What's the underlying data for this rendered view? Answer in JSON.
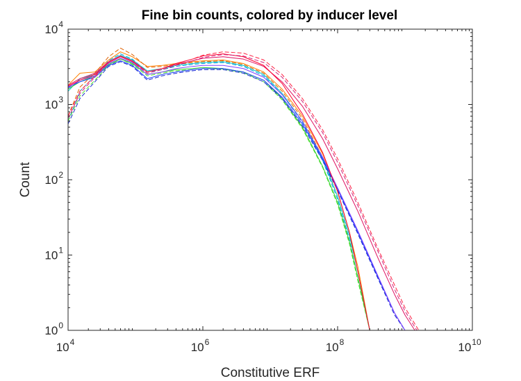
{
  "chart_data": {
    "type": "line",
    "title": "Fine bin counts, colored by inducer level",
    "xlabel": "Constitutive ERF",
    "ylabel": "Count",
    "xscale": "log",
    "yscale": "log",
    "xlim": [
      10000,
      10000000000
    ],
    "ylim": [
      1,
      10000
    ],
    "grid": false,
    "legend": "none",
    "xticks": [
      {
        "base": "10",
        "exp": "4",
        "value": 10000
      },
      {
        "base": "10",
        "exp": "6",
        "value": 1000000
      },
      {
        "base": "10",
        "exp": "8",
        "value": 100000000
      },
      {
        "base": "10",
        "exp": "10",
        "value": 10000000000
      }
    ],
    "yticks": [
      {
        "base": "10",
        "exp": "0",
        "value": 1
      },
      {
        "base": "10",
        "exp": "1",
        "value": 10
      },
      {
        "base": "10",
        "exp": "2",
        "value": 100
      },
      {
        "base": "10",
        "exp": "3",
        "value": 1000
      },
      {
        "base": "10",
        "exp": "4",
        "value": 10000
      }
    ],
    "series": [
      {
        "color": "#ff8000",
        "dash": "solid",
        "x": [
          10000,
          15000,
          25000,
          40000,
          60000,
          90000,
          150000,
          250000,
          400000,
          700000,
          1000000,
          2000000,
          4000000,
          8000000,
          15000000,
          30000000,
          60000000,
          100000000,
          150000000,
          200000000,
          300000000
        ],
        "y": [
          1800,
          2600,
          2700,
          3900,
          5000,
          4300,
          3200,
          3300,
          3500,
          3700,
          3800,
          3900,
          3500,
          2700,
          1600,
          700,
          220,
          70,
          20,
          7,
          1
        ]
      },
      {
        "color": "#e06000",
        "dash": "dashed",
        "x": [
          10000,
          15000,
          25000,
          40000,
          60000,
          90000,
          150000,
          250000,
          400000,
          700000,
          1000000,
          2000000,
          4000000,
          8000000,
          15000000,
          30000000,
          60000000,
          100000000,
          150000000,
          200000000,
          300000000
        ],
        "y": [
          700,
          1700,
          2600,
          4300,
          5600,
          4600,
          3100,
          3200,
          3400,
          3600,
          3700,
          3800,
          3400,
          2600,
          1500,
          650,
          200,
          60,
          18,
          6,
          1
        ]
      },
      {
        "color": "#00c8c8",
        "dash": "solid",
        "x": [
          10000,
          15000,
          25000,
          40000,
          60000,
          90000,
          150000,
          250000,
          400000,
          700000,
          1000000,
          2000000,
          4000000,
          8000000,
          15000000,
          30000000,
          60000000,
          100000000,
          150000000,
          200000000,
          300000000
        ],
        "y": [
          1500,
          2200,
          2500,
          3700,
          4500,
          3900,
          2800,
          3000,
          3300,
          3500,
          3600,
          3700,
          3300,
          2500,
          1400,
          600,
          190,
          60,
          18,
          6,
          1
        ]
      },
      {
        "color": "#00a0e0",
        "dash": "dashed",
        "x": [
          10000,
          15000,
          25000,
          40000,
          60000,
          90000,
          150000,
          250000,
          400000,
          700000,
          1000000,
          2000000,
          4000000,
          8000000,
          15000000,
          30000000,
          60000000,
          100000000,
          150000000,
          200000000,
          300000000
        ],
        "y": [
          600,
          1500,
          2400,
          3800,
          4700,
          4000,
          2700,
          2900,
          3200,
          3400,
          3500,
          3600,
          3200,
          2400,
          1350,
          580,
          180,
          55,
          16,
          5,
          1
        ]
      },
      {
        "color": "#30d030",
        "dash": "solid",
        "x": [
          10000,
          15000,
          25000,
          40000,
          60000,
          90000,
          150000,
          250000,
          400000,
          700000,
          1000000,
          2000000,
          4000000,
          8000000,
          15000000,
          30000000,
          60000000,
          100000000,
          150000000,
          200000000,
          300000000
        ],
        "y": [
          1600,
          2000,
          2400,
          3400,
          4000,
          3500,
          2500,
          2700,
          2900,
          3000,
          3100,
          3000,
          2700,
          2100,
          1200,
          500,
          150,
          50,
          15,
          5,
          1
        ]
      },
      {
        "color": "#50e030",
        "dash": "dashed",
        "x": [
          10000,
          15000,
          25000,
          40000,
          60000,
          90000,
          150000,
          250000,
          400000,
          700000,
          1000000,
          2000000,
          4000000,
          8000000,
          15000000,
          30000000,
          60000000,
          100000000,
          150000000,
          200000000,
          300000000
        ],
        "y": [
          600,
          1300,
          2100,
          3300,
          4000,
          3400,
          2400,
          2600,
          2800,
          2900,
          3000,
          2950,
          2650,
          2000,
          1150,
          480,
          145,
          47,
          14,
          4.5,
          1
        ]
      },
      {
        "color": "#1a3cff",
        "dash": "solid",
        "x": [
          10000,
          15000,
          25000,
          40000,
          60000,
          90000,
          150000,
          250000,
          400000,
          700000,
          1000000,
          2000000,
          4000000,
          8000000,
          15000000,
          30000000,
          60000000,
          100000000,
          200000000,
          400000000,
          700000000,
          1000000000
        ],
        "y": [
          1700,
          2000,
          2300,
          3300,
          3800,
          3300,
          2200,
          2500,
          2700,
          2900,
          3000,
          3000,
          2700,
          2100,
          1250,
          550,
          190,
          75,
          20,
          5,
          1.7,
          1
        ]
      },
      {
        "color": "#1a2ad0",
        "dash": "dashed",
        "x": [
          10000,
          15000,
          25000,
          40000,
          60000,
          90000,
          150000,
          250000,
          400000,
          700000,
          1000000,
          2000000,
          4000000,
          8000000,
          15000000,
          30000000,
          60000000,
          100000000,
          200000000,
          400000000,
          700000000,
          1000000000
        ],
        "y": [
          550,
          1200,
          2000,
          3200,
          3700,
          3200,
          2100,
          2400,
          2600,
          2800,
          2900,
          2900,
          2600,
          2000,
          1200,
          520,
          180,
          72,
          19,
          4.8,
          1.6,
          1
        ]
      },
      {
        "color": "#8040ff",
        "dash": "solid",
        "x": [
          10000,
          15000,
          25000,
          40000,
          60000,
          90000,
          150000,
          250000,
          400000,
          700000,
          1000000,
          2000000,
          4000000,
          8000000,
          15000000,
          30000000,
          60000000,
          100000000,
          200000000,
          400000000,
          700000000,
          1000000000
        ],
        "y": [
          1650,
          2100,
          2400,
          3500,
          4100,
          3600,
          2500,
          2700,
          3000,
          3200,
          3300,
          3300,
          3000,
          2300,
          1350,
          600,
          200,
          78,
          21,
          5.2,
          1.7,
          1
        ]
      },
      {
        "color": "#e01060",
        "dash": "solid",
        "x": [
          10000,
          15000,
          25000,
          40000,
          60000,
          90000,
          150000,
          250000,
          400000,
          700000,
          1000000,
          2000000,
          4000000,
          8000000,
          15000000,
          30000000,
          60000000,
          100000000,
          200000000,
          400000000,
          700000000,
          1000000000,
          1400000000
        ],
        "y": [
          1800,
          2200,
          2600,
          3700,
          4400,
          3800,
          2700,
          3000,
          3400,
          3800,
          4100,
          4300,
          4000,
          3200,
          2000,
          950,
          350,
          140,
          38,
          9,
          3,
          1.6,
          1
        ]
      },
      {
        "color": "#ff0030",
        "dash": "solid",
        "x": [
          10000,
          15000,
          25000,
          40000,
          60000,
          90000,
          150000,
          250000,
          400000,
          700000,
          1000000,
          2000000,
          4000000,
          8000000,
          15000000,
          30000000,
          60000000,
          100000000,
          150000000,
          200000000,
          300000000
        ],
        "y": [
          1750,
          2100,
          2500,
          3600,
          4300,
          3700,
          2700,
          3000,
          3500,
          4000,
          4400,
          4700,
          4300,
          3300,
          1900,
          750,
          230,
          70,
          20,
          6,
          1
        ]
      },
      {
        "color": "#d0207a",
        "dash": "dashed",
        "x": [
          10000,
          15000,
          25000,
          40000,
          60000,
          90000,
          150000,
          250000,
          400000,
          700000,
          1000000,
          2000000,
          4000000,
          8000000,
          15000000,
          30000000,
          60000000,
          100000000,
          200000000,
          400000000,
          700000000,
          1000000000,
          1500000000
        ],
        "y": [
          650,
          1400,
          2300,
          3600,
          4300,
          3700,
          2600,
          2900,
          3300,
          3800,
          4200,
          4600,
          4400,
          3600,
          2300,
          1100,
          420,
          170,
          45,
          11,
          3.5,
          1.8,
          1
        ]
      },
      {
        "color": "#ff2040",
        "dash": "dashed",
        "x": [
          10000,
          15000,
          25000,
          40000,
          60000,
          90000,
          150000,
          250000,
          400000,
          700000,
          1000000,
          2000000,
          4000000,
          8000000,
          15000000,
          30000000,
          60000000,
          100000000,
          200000000,
          400000000,
          700000000,
          1000000000,
          1600000000
        ],
        "y": [
          700,
          1500,
          2400,
          3700,
          4400,
          3800,
          2700,
          3000,
          3500,
          4000,
          4500,
          5000,
          4800,
          3900,
          2500,
          1200,
          460,
          190,
          50,
          12,
          4,
          2,
          1
        ]
      }
    ]
  }
}
